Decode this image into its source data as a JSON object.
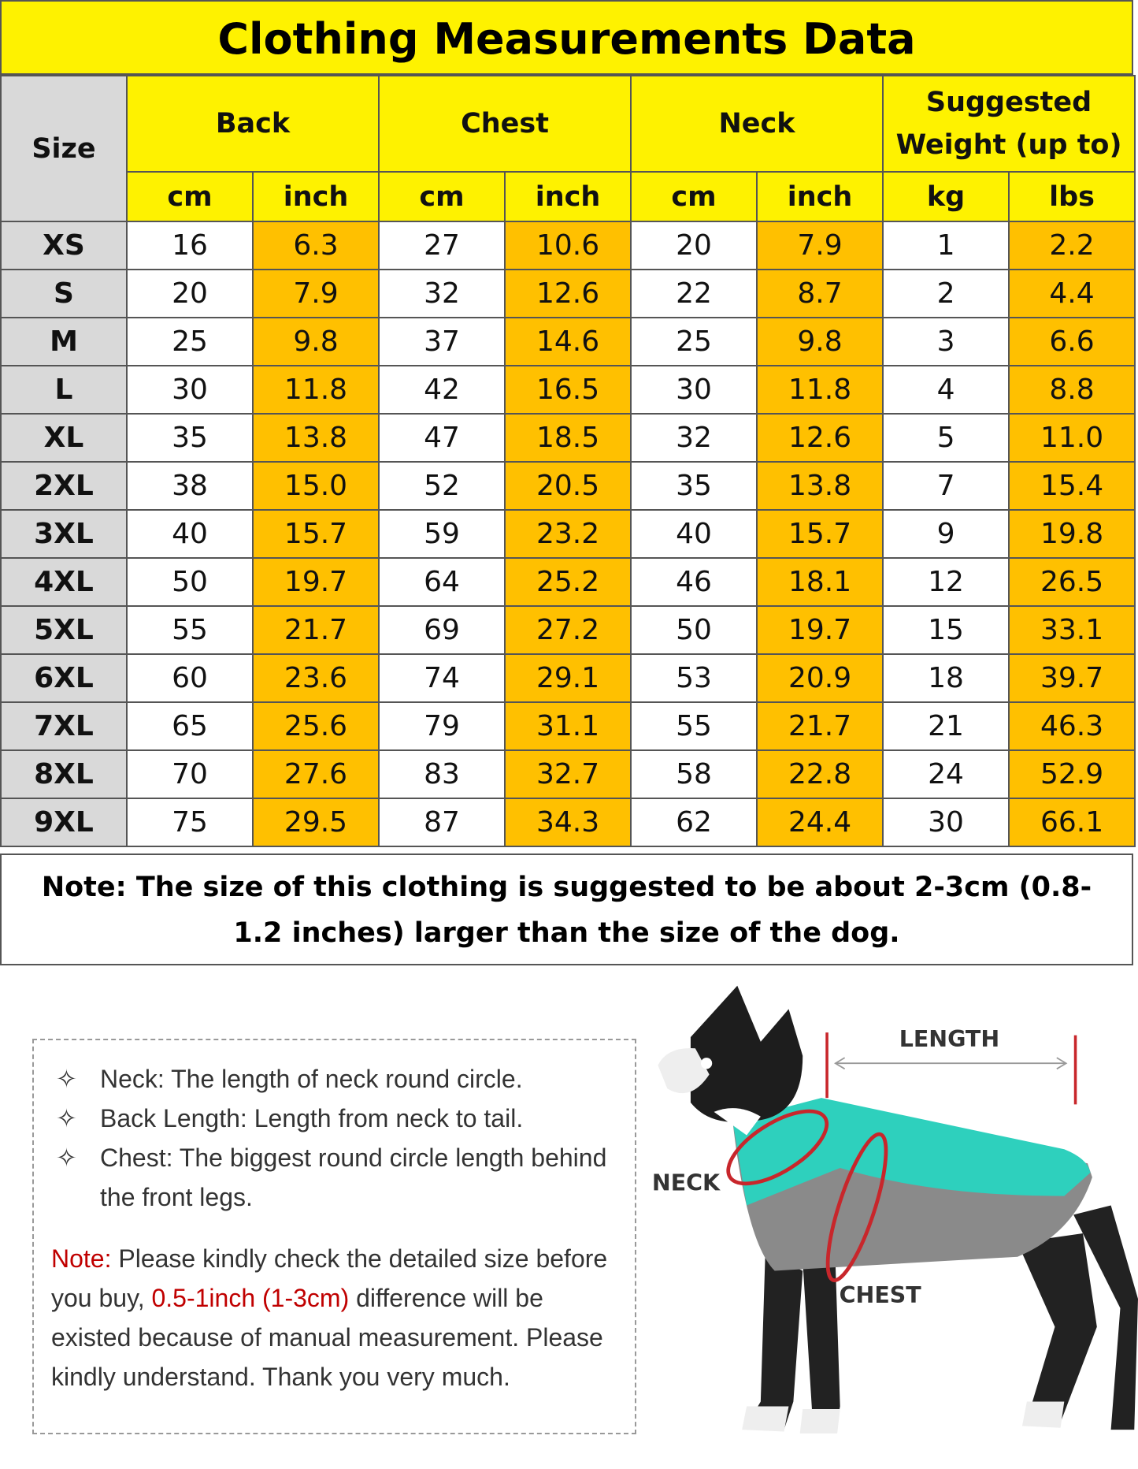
{
  "title": "Clothing Measurements Data",
  "table": {
    "size_header": "Size",
    "groups": [
      {
        "label": "Back",
        "units": [
          "cm",
          "inch"
        ]
      },
      {
        "label": "Chest",
        "units": [
          "cm",
          "inch"
        ]
      },
      {
        "label": "Neck",
        "units": [
          "cm",
          "inch"
        ]
      },
      {
        "label": "Suggested Weight (up to)",
        "units": [
          "kg",
          "lbs"
        ]
      }
    ],
    "rows": [
      [
        "XS",
        "16",
        "6.3",
        "27",
        "10.6",
        "20",
        "7.9",
        "1",
        "2.2"
      ],
      [
        "S",
        "20",
        "7.9",
        "32",
        "12.6",
        "22",
        "8.7",
        "2",
        "4.4"
      ],
      [
        "M",
        "25",
        "9.8",
        "37",
        "14.6",
        "25",
        "9.8",
        "3",
        "6.6"
      ],
      [
        "L",
        "30",
        "11.8",
        "42",
        "16.5",
        "30",
        "11.8",
        "4",
        "8.8"
      ],
      [
        "XL",
        "35",
        "13.8",
        "47",
        "18.5",
        "32",
        "12.6",
        "5",
        "11.0"
      ],
      [
        "2XL",
        "38",
        "15.0",
        "52",
        "20.5",
        "35",
        "13.8",
        "7",
        "15.4"
      ],
      [
        "3XL",
        "40",
        "15.7",
        "59",
        "23.2",
        "40",
        "15.7",
        "9",
        "19.8"
      ],
      [
        "4XL",
        "50",
        "19.7",
        "64",
        "25.2",
        "46",
        "18.1",
        "12",
        "26.5"
      ],
      [
        "5XL",
        "55",
        "21.7",
        "69",
        "27.2",
        "50",
        "19.7",
        "15",
        "33.1"
      ],
      [
        "6XL",
        "60",
        "23.6",
        "74",
        "29.1",
        "53",
        "20.9",
        "18",
        "39.7"
      ],
      [
        "7XL",
        "65",
        "25.6",
        "79",
        "31.1",
        "55",
        "21.7",
        "21",
        "46.3"
      ],
      [
        "8XL",
        "70",
        "27.6",
        "83",
        "32.7",
        "58",
        "22.8",
        "24",
        "52.9"
      ],
      [
        "9XL",
        "75",
        "29.5",
        "87",
        "34.3",
        "62",
        "24.4",
        "30",
        "66.1"
      ]
    ]
  },
  "note": "Note: The size of this clothing is suggested to be about 2-3cm (0.8-1.2 inches) larger than the size of the dog.",
  "info": {
    "items": [
      "Neck: The length of neck round circle.",
      "Back Length: Length from neck to tail.",
      "Chest: The biggest round circle length behind the front legs."
    ],
    "note_label": "Note:",
    "note_text_1": "Please kindly check the detailed size before you buy,",
    "note_highlight": "0.5-1inch (1-3cm)",
    "note_text_2": "difference will be existed because of manual measurement. Please kindly understand. Thank you very much."
  },
  "diagram": {
    "length": "LENGTH",
    "neck": "NECK",
    "chest": "CHEST"
  }
}
